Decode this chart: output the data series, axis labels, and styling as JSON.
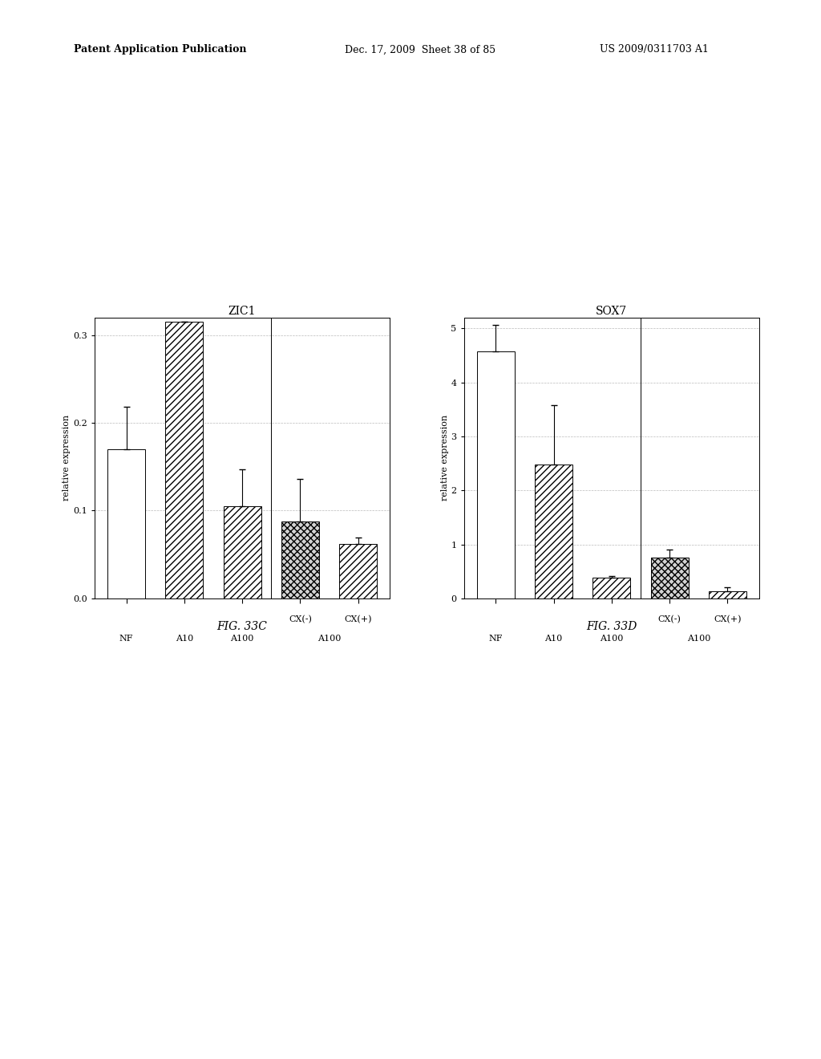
{
  "fig33c": {
    "title": "ZIC1",
    "ylabel": "relative expression",
    "ylim": [
      0.0,
      0.32
    ],
    "yticks": [
      0.0,
      0.1,
      0.2,
      0.3
    ],
    "yticklabels": [
      "0.0",
      "0.1",
      "0.2",
      "0.3"
    ],
    "categories": [
      "NF",
      "A10",
      "A100",
      "CX(-)",
      "CX(+)"
    ],
    "group_labels": [
      "NF",
      "A10",
      "A100",
      "A100"
    ],
    "values": [
      0.17,
      0.315,
      0.105,
      0.088,
      0.062
    ],
    "errors": [
      0.048,
      0.0,
      0.042,
      0.048,
      0.007
    ],
    "hatches": [
      "",
      "////",
      "////",
      "xxxx",
      "////"
    ],
    "bar_facecolors": [
      "white",
      "white",
      "white",
      "lightgray",
      "white"
    ],
    "bar_edgecolors": [
      "black",
      "black",
      "black",
      "black",
      "black"
    ]
  },
  "fig33d": {
    "title": "SOX7",
    "ylabel": "relative expression",
    "ylim": [
      0,
      5.2
    ],
    "yticks": [
      0,
      1,
      2,
      3,
      4,
      5
    ],
    "yticklabels": [
      "0",
      "1",
      "2",
      "3",
      "4",
      "5"
    ],
    "categories": [
      "NF",
      "A10",
      "A100",
      "CX(-)",
      "CX(+)"
    ],
    "group_labels": [
      "NF",
      "A10",
      "A100",
      "A100"
    ],
    "values": [
      4.57,
      2.48,
      0.38,
      0.75,
      0.13
    ],
    "errors": [
      0.5,
      1.1,
      0.04,
      0.16,
      0.07
    ],
    "hatches": [
      "",
      "////",
      "////",
      "xxxx",
      "////"
    ],
    "bar_facecolors": [
      "white",
      "white",
      "white",
      "lightgray",
      "white"
    ],
    "bar_edgecolors": [
      "black",
      "black",
      "black",
      "black",
      "black"
    ]
  },
  "header_left": "Patent Application Publication",
  "header_mid": "Dec. 17, 2009  Sheet 38 of 85",
  "header_right": "US 2009/0311703 A1",
  "fig_label_c": "FIG. 33C",
  "fig_label_d": "FIG. 33D",
  "background_color": "white",
  "grid_color": "#bbbbbb",
  "separator_color": "black"
}
